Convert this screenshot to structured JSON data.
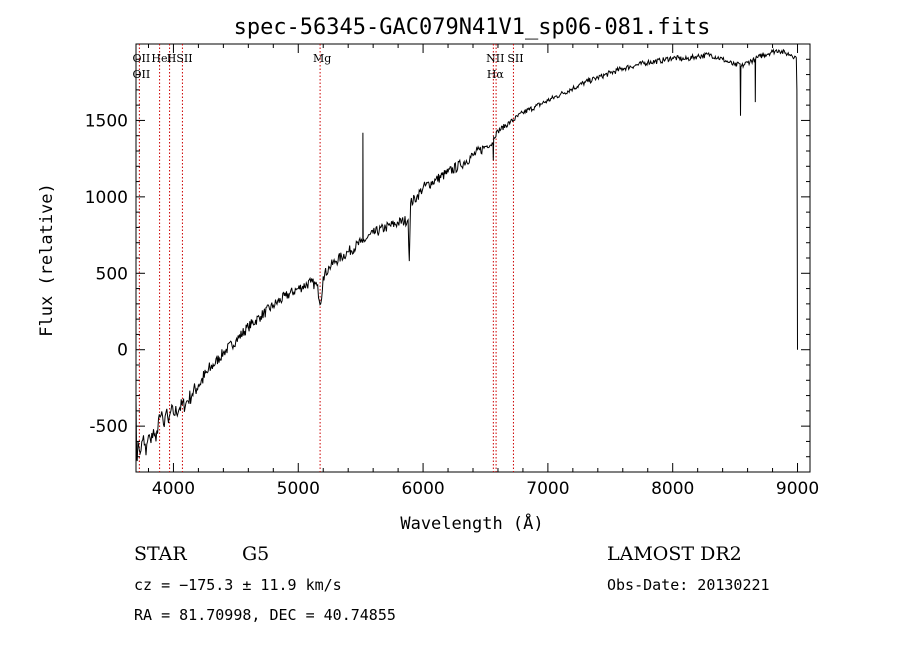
{
  "chart_data": {
    "type": "line",
    "title": "spec-56345-GAC079N41V1_sp06-081.fits",
    "xlabel": "Wavelength (Å)",
    "ylabel": "Flux (relative)",
    "xlim": [
      3700,
      9100
    ],
    "ylim": [
      -800,
      2000
    ],
    "x_ticks": [
      4000,
      5000,
      6000,
      7000,
      8000,
      9000
    ],
    "y_ticks": [
      -500,
      0,
      500,
      1000,
      1500
    ],
    "grid": false,
    "series": [
      {
        "x": [
          3700,
          3705,
          3720,
          3740,
          3760,
          3780,
          3800,
          3820,
          3840,
          3860,
          3880,
          3900,
          3920,
          3940,
          3960,
          3980,
          4000,
          4050,
          4100,
          4150,
          4200,
          4300,
          4400,
          4500,
          4600,
          4700,
          4800,
          4900,
          5000,
          5100,
          5150,
          5180,
          5200,
          5250,
          5300,
          5400,
          5500,
          5517,
          5518,
          5520,
          5600,
          5700,
          5800,
          5880,
          5890,
          5900,
          5950,
          6000,
          6100,
          6200,
          6300,
          6400,
          6500,
          6560,
          6563,
          6566,
          6600,
          6700,
          6800,
          6900,
          7000,
          7100,
          7200,
          7300,
          7400,
          7500,
          7600,
          7700,
          7800,
          7900,
          8000,
          8100,
          8200,
          8300,
          8400,
          8450,
          8500,
          8540,
          8543,
          8546,
          8600,
          8660,
          8662,
          8664,
          8700,
          8800,
          8850,
          8900,
          8950,
          8990,
          8995,
          9000
        ],
        "y": [
          -300,
          -700,
          -620,
          -660,
          -560,
          -690,
          -560,
          -610,
          -520,
          -600,
          -450,
          -430,
          -490,
          -410,
          -480,
          -400,
          -420,
          -380,
          -350,
          -290,
          -230,
          -120,
          -20,
          60,
          150,
          220,
          290,
          350,
          400,
          440,
          420,
          300,
          480,
          540,
          580,
          640,
          700,
          700,
          1420,
          710,
          760,
          800,
          830,
          850,
          580,
          960,
          1000,
          1060,
          1110,
          1160,
          1210,
          1270,
          1330,
          1350,
          1240,
          1390,
          1430,
          1490,
          1550,
          1590,
          1630,
          1670,
          1710,
          1750,
          1780,
          1810,
          1840,
          1860,
          1880,
          1890,
          1910,
          1900,
          1920,
          1930,
          1900,
          1880,
          1860,
          1870,
          1530,
          1850,
          1880,
          1900,
          1620,
          1900,
          1920,
          1950,
          1960,
          1940,
          1930,
          1910,
          1700,
          0
        ]
      }
    ],
    "emission_lines": [
      {
        "wl": 3727,
        "labels": [
          "OII",
          "OII"
        ]
      },
      {
        "wl": 3889,
        "labels": [
          "HeI"
        ]
      },
      {
        "wl": 3969,
        "labels": [
          "H"
        ]
      },
      {
        "wl": 4072,
        "labels": [
          "SII"
        ]
      },
      {
        "wl": 5175,
        "labels": [
          "Mg"
        ]
      },
      {
        "wl": 6563,
        "labels": [
          "NII",
          "Hα"
        ]
      },
      {
        "wl": 6585,
        "labels": []
      },
      {
        "wl": 6724,
        "labels": [
          "SII"
        ]
      }
    ],
    "line_color": "#cc0000",
    "spectrum_color": "#000000"
  },
  "info": {
    "class": "STAR",
    "subclass": "G5",
    "survey": "LAMOST DR2",
    "cz": "cz = −175.3 ± 11.9 km/s",
    "obs_date": "Obs-Date: 20130221",
    "radec": "RA =  81.70998, DEC =  40.74855"
  }
}
